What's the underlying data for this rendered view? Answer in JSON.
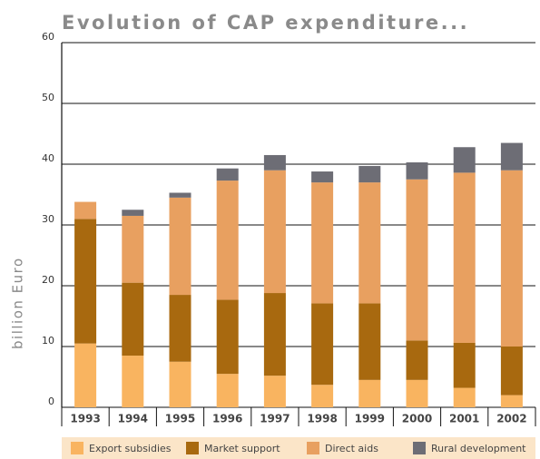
{
  "chart_data": {
    "type": "bar",
    "stacked": true,
    "title": "Evolution of CAP expenditure...",
    "y_label": "billion Euro",
    "categories": [
      "1993",
      "1994",
      "1995",
      "1996",
      "1997",
      "1998",
      "1999",
      "2000",
      "2001",
      "2002"
    ],
    "series": [
      {
        "name": "Export subsidies",
        "color": "#f9b460",
        "values": [
          10.5,
          8.5,
          7.5,
          5.5,
          5.2,
          3.7,
          4.5,
          4.5,
          3.2,
          2
        ]
      },
      {
        "name": "Market support",
        "color": "#a8690f",
        "values": [
          20.5,
          12,
          11,
          12.2,
          13.6,
          13.4,
          12.6,
          6.5,
          7.4,
          8
        ]
      },
      {
        "name": "Direct aids",
        "color": "#e8a060",
        "values": [
          2.8,
          11,
          16,
          19.6,
          20.2,
          19.9,
          19.9,
          26.5,
          28,
          29
        ]
      },
      {
        "name": "Rural development",
        "color": "#6d6d75",
        "values": [
          0,
          1,
          0.8,
          2,
          2.5,
          1.8,
          2.7,
          2.8,
          4.2,
          4.5
        ]
      }
    ],
    "ylim": [
      0,
      60
    ],
    "yticks": [
      0,
      10,
      20,
      30,
      40,
      50,
      60
    ],
    "grid": true,
    "legend": "bottom"
  }
}
